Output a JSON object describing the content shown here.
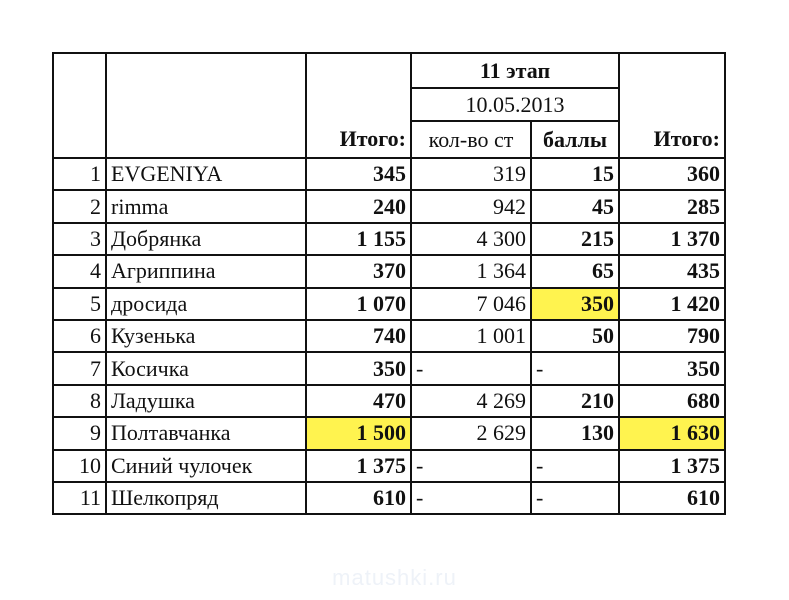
{
  "header": {
    "stage": "11 этап",
    "date": "10.05.2013",
    "columns": [
      "Итого:",
      "кол-во ст",
      "баллы",
      "Итого:"
    ]
  },
  "table": {
    "rows": [
      [
        "1",
        "EVGENIYA",
        "345",
        "319",
        "15",
        "360"
      ],
      [
        "2",
        "rimma",
        "240",
        "942",
        "45",
        "285"
      ],
      [
        "3",
        "Добрянка",
        "1 155",
        "4 300",
        "215",
        "1 370"
      ],
      [
        "4",
        "Агриппина",
        "370",
        "1 364",
        "65",
        "435"
      ],
      [
        "5",
        "дросида",
        "1 070",
        "7 046",
        "350",
        "1 420"
      ],
      [
        "6",
        "Кузенька",
        "740",
        "1 001",
        "50",
        "790"
      ],
      [
        "7",
        "Косичка",
        "350",
        "-",
        "-",
        "350"
      ],
      [
        "8",
        "Ладушка",
        "470",
        "4 269",
        "210",
        "680"
      ],
      [
        "9",
        "Полтавчанка",
        "1 500",
        "2 629",
        "130",
        "1 630"
      ],
      [
        "10",
        "Синий чулочек",
        "1 375",
        "-",
        "-",
        "1 375"
      ],
      [
        "11",
        "Шелкопряд",
        "610",
        "-",
        "-",
        "610"
      ]
    ]
  },
  "watermark": "matushki.ru"
}
